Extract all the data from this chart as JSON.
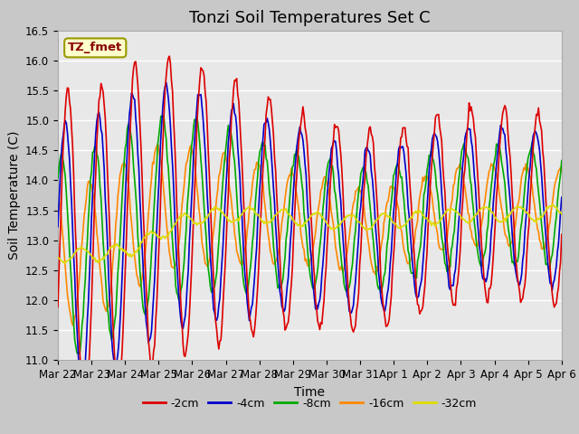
{
  "title": "Tonzi Soil Temperatures Set C",
  "xlabel": "Time",
  "ylabel": "Soil Temperature (C)",
  "ylim": [
    11.0,
    16.5
  ],
  "yticks": [
    11.0,
    11.5,
    12.0,
    12.5,
    13.0,
    13.5,
    14.0,
    14.5,
    15.0,
    15.5,
    16.0,
    16.5
  ],
  "xtick_labels": [
    "Mar 22",
    "Mar 23",
    "Mar 24",
    "Mar 25",
    "Mar 26",
    "Mar 27",
    "Mar 28",
    "Mar 29",
    "Mar 30",
    "Mar 31",
    "Apr 1",
    "Apr 2",
    "Apr 3",
    "Apr 4",
    "Apr 5",
    "Apr 6"
  ],
  "series_colors": [
    "#dd0000",
    "#0000cc",
    "#00aa00",
    "#ff8800",
    "#dddd00"
  ],
  "series_labels": [
    "-2cm",
    "-4cm",
    "-8cm",
    "-16cm",
    "-32cm"
  ],
  "legend_label": "TZ_fmet",
  "legend_bg": "#ffffcc",
  "legend_border": "#999900",
  "plot_bg": "#e8e8e8",
  "fig_bg": "#c8c8c8",
  "title_fontsize": 13,
  "axis_label_fontsize": 10,
  "tick_fontsize": 8.5
}
